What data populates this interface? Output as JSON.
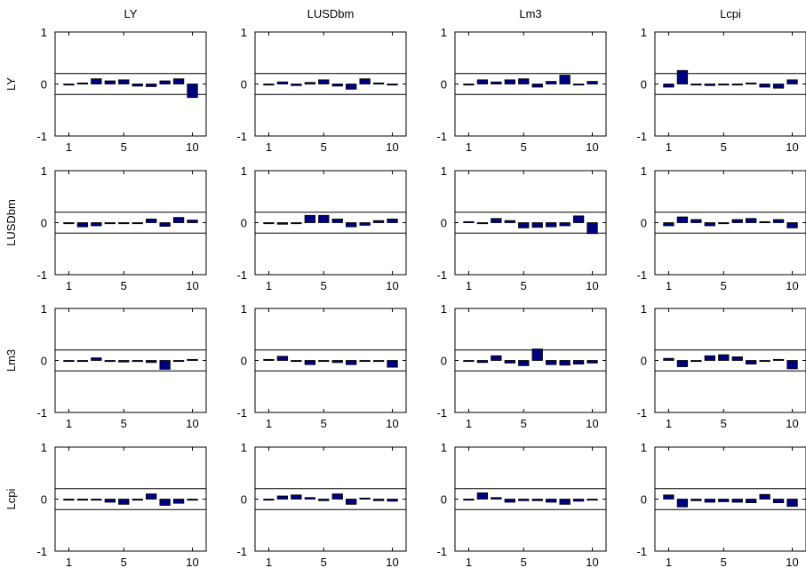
{
  "chart_data": {
    "type": "bar",
    "layout": "4x4 small-multiples grid",
    "col_titles": [
      "LY",
      "LUSDbm",
      "Lm3",
      "Lcpi"
    ],
    "row_labels": [
      "LY",
      "LUSDbm",
      "Lm3",
      "Lcpi"
    ],
    "x": [
      1,
      2,
      3,
      4,
      5,
      6,
      7,
      8,
      9,
      10
    ],
    "xticks": [
      "1",
      "5",
      "10"
    ],
    "yticks": [
      "-1",
      "0",
      "1"
    ],
    "ylim": [
      -1,
      1
    ],
    "band": [
      -0.2,
      0.2
    ],
    "grid": false,
    "bar_color": "#00007f",
    "panels": [
      [
        {
          "values": [
            0.0,
            0.02,
            0.1,
            0.06,
            0.08,
            -0.04,
            -0.05,
            0.06,
            0.1,
            -0.26
          ]
        },
        {
          "values": [
            0.0,
            0.04,
            -0.03,
            0.03,
            0.08,
            -0.04,
            -0.1,
            0.1,
            0.02,
            -0.02
          ]
        },
        {
          "values": [
            0.0,
            0.08,
            0.04,
            0.08,
            0.1,
            -0.06,
            0.05,
            0.17,
            0.0,
            0.05
          ]
        },
        {
          "values": [
            -0.06,
            0.26,
            -0.02,
            -0.03,
            -0.02,
            -0.02,
            0.02,
            -0.06,
            -0.08,
            0.08
          ]
        }
      ],
      [
        {
          "values": [
            0.0,
            -0.08,
            -0.06,
            -0.02,
            -0.02,
            0.0,
            0.07,
            -0.07,
            0.1,
            0.05
          ]
        },
        {
          "values": [
            0.0,
            -0.03,
            -0.02,
            0.14,
            0.14,
            0.07,
            -0.08,
            -0.05,
            0.04,
            0.07
          ]
        },
        {
          "values": [
            0.02,
            -0.02,
            0.08,
            0.04,
            -0.1,
            -0.09,
            -0.08,
            -0.06,
            0.13,
            -0.21
          ]
        },
        {
          "values": [
            -0.06,
            0.11,
            0.06,
            -0.06,
            -0.02,
            0.06,
            0.08,
            0.02,
            0.06,
            -0.1
          ]
        }
      ],
      [
        {
          "values": [
            0.0,
            -0.02,
            0.05,
            0.0,
            -0.03,
            -0.02,
            -0.04,
            -0.17,
            0.0,
            0.02
          ]
        },
        {
          "values": [
            0.02,
            0.08,
            0.0,
            -0.08,
            -0.02,
            -0.04,
            -0.08,
            -0.02,
            -0.02,
            -0.13
          ]
        },
        {
          "values": [
            0.0,
            -0.04,
            0.09,
            -0.05,
            -0.1,
            0.22,
            -0.08,
            -0.09,
            -0.07,
            -0.05
          ]
        },
        {
          "values": [
            0.04,
            -0.12,
            0.0,
            0.09,
            0.11,
            0.07,
            -0.07,
            0.0,
            0.02,
            -0.16
          ]
        }
      ],
      [
        {
          "values": [
            0.0,
            0.0,
            0.0,
            -0.06,
            -0.1,
            0.0,
            0.1,
            -0.12,
            -0.08,
            0.0
          ]
        },
        {
          "values": [
            0.0,
            0.06,
            0.08,
            0.03,
            -0.03,
            0.1,
            -0.1,
            0.02,
            -0.03,
            -0.04
          ]
        },
        {
          "values": [
            0.0,
            0.12,
            0.03,
            -0.06,
            -0.03,
            -0.03,
            -0.06,
            -0.1,
            -0.04,
            0.0
          ]
        },
        {
          "values": [
            0.08,
            -0.15,
            -0.03,
            -0.06,
            -0.05,
            -0.06,
            -0.07,
            0.09,
            -0.07,
            -0.14
          ]
        }
      ]
    ]
  }
}
